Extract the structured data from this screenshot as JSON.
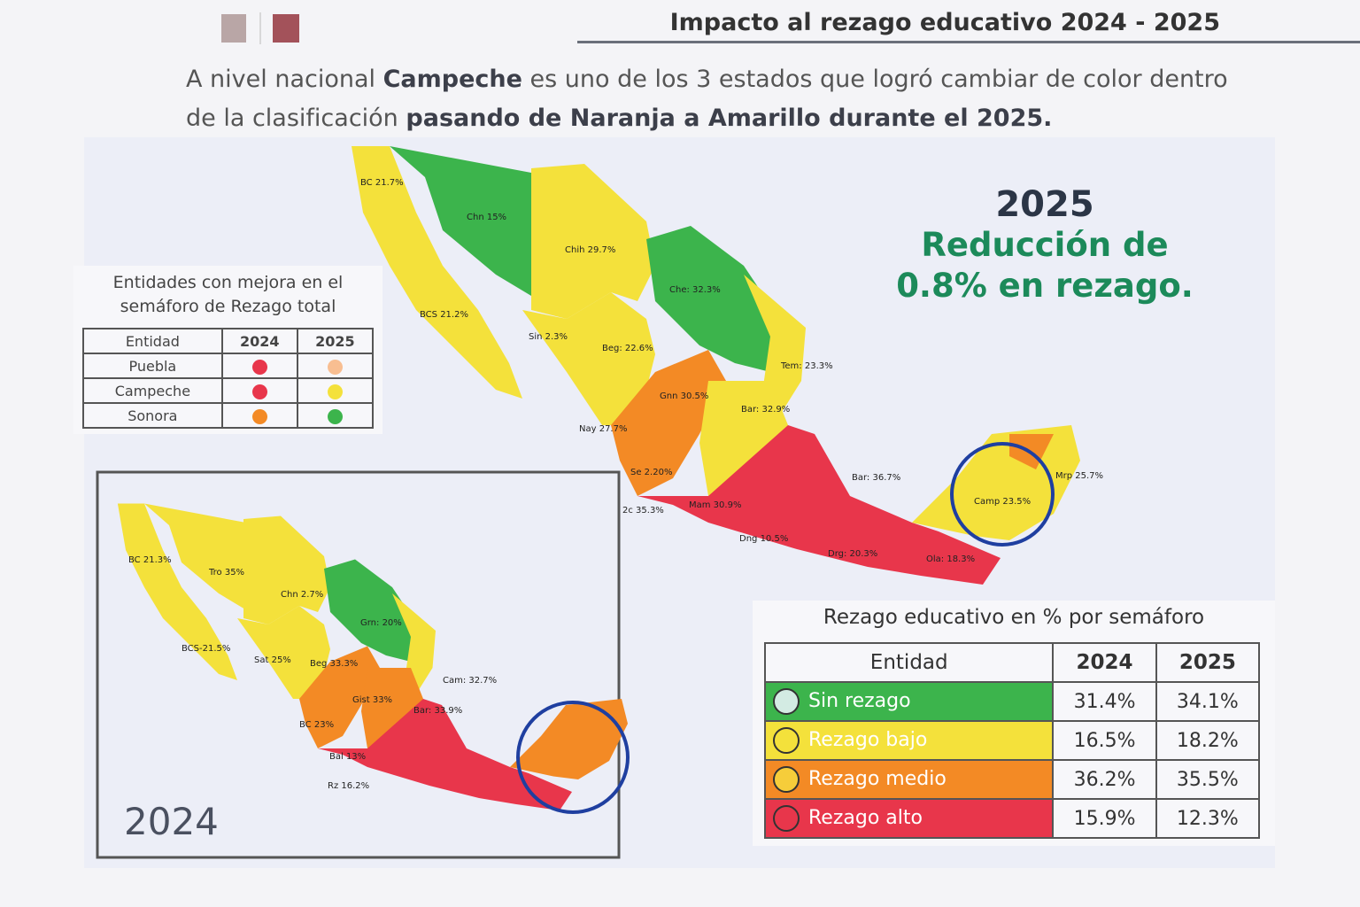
{
  "header": {
    "title": "Impacto al rezago educativo 2024 - 2025"
  },
  "intro": {
    "parts": [
      "A nivel nacional ",
      "Campeche",
      " es uno de los 3 estados que logró cambiar de color dentro de la clasificación ",
      "pasando de Naranja a Amarillo durante el 2025."
    ]
  },
  "headline": {
    "year": "2025",
    "line1": "Reducción de",
    "line2": "0.8% en rezago."
  },
  "improvement_table": {
    "title": "Entidades con mejora en el semáforo de Rezago total",
    "columns": [
      "Entidad",
      "2024",
      "2025"
    ],
    "rows": [
      {
        "entity": "Puebla",
        "color_2024": "#e8364b",
        "color_2025": "#f8be91"
      },
      {
        "entity": "Campeche",
        "color_2024": "#e8364b",
        "color_2025": "#f4e13b"
      },
      {
        "entity": "Sonora",
        "color_2024": "#f38a25",
        "color_2025": "#3cb44c"
      }
    ]
  },
  "map_2025": {
    "labels": [
      "BC 21.7%",
      "Chn 15%",
      "Chih 29.7%",
      "BCS 21.2%",
      "Che: 32.3%",
      "Sin 2.3%",
      "Beg: 22.6%",
      "Tem: 23.3%",
      "Gnn 30.5%",
      "Bar: 32.9%",
      "Nay 27.7%",
      "Se 2.20%",
      "2c 35.3%",
      "Mam 30.9%",
      "Dng 10.5%",
      "Drg: 20.3%",
      "Ola: 18.3%",
      "Bar: 36.7%",
      "Camp 23.5%",
      "Mrp 25.7%"
    ]
  },
  "map_2024": {
    "year_label": "2024",
    "labels": [
      "BC 21.3%",
      "Tro 35%",
      "Chn 2.7%",
      "Grn: 20%",
      "BCS-21.5%",
      "Sat 25%",
      "Beg 33.3%",
      "Cam: 32.7%",
      "Gist 33%",
      "Bar: 33.9%",
      "BC 23%",
      "Bal 13%",
      "Rz 16.2%"
    ]
  },
  "semaforo_table": {
    "title": "Rezago educativo en % por semáforo",
    "columns": [
      "Entidad",
      "2024",
      "2025"
    ],
    "rows": [
      {
        "category": "Sin rezago",
        "color": "#3cb44c",
        "icon": "#d3ebe3",
        "v2024": "31.4%",
        "v2025": "34.1%"
      },
      {
        "category": "Rezago bajo",
        "color": "#f4e13b",
        "icon": "#f4e13b",
        "v2024": "16.5%",
        "v2025": "18.2%"
      },
      {
        "category": "Rezago medio",
        "color": "#f38a25",
        "icon": "#f6cd3a",
        "v2024": "36.2%",
        "v2025": "35.5%"
      },
      {
        "category": "Rezago alto",
        "color": "#e8364b",
        "icon": "#e8364b",
        "v2024": "15.9%",
        "v2025": "12.3%"
      }
    ]
  }
}
